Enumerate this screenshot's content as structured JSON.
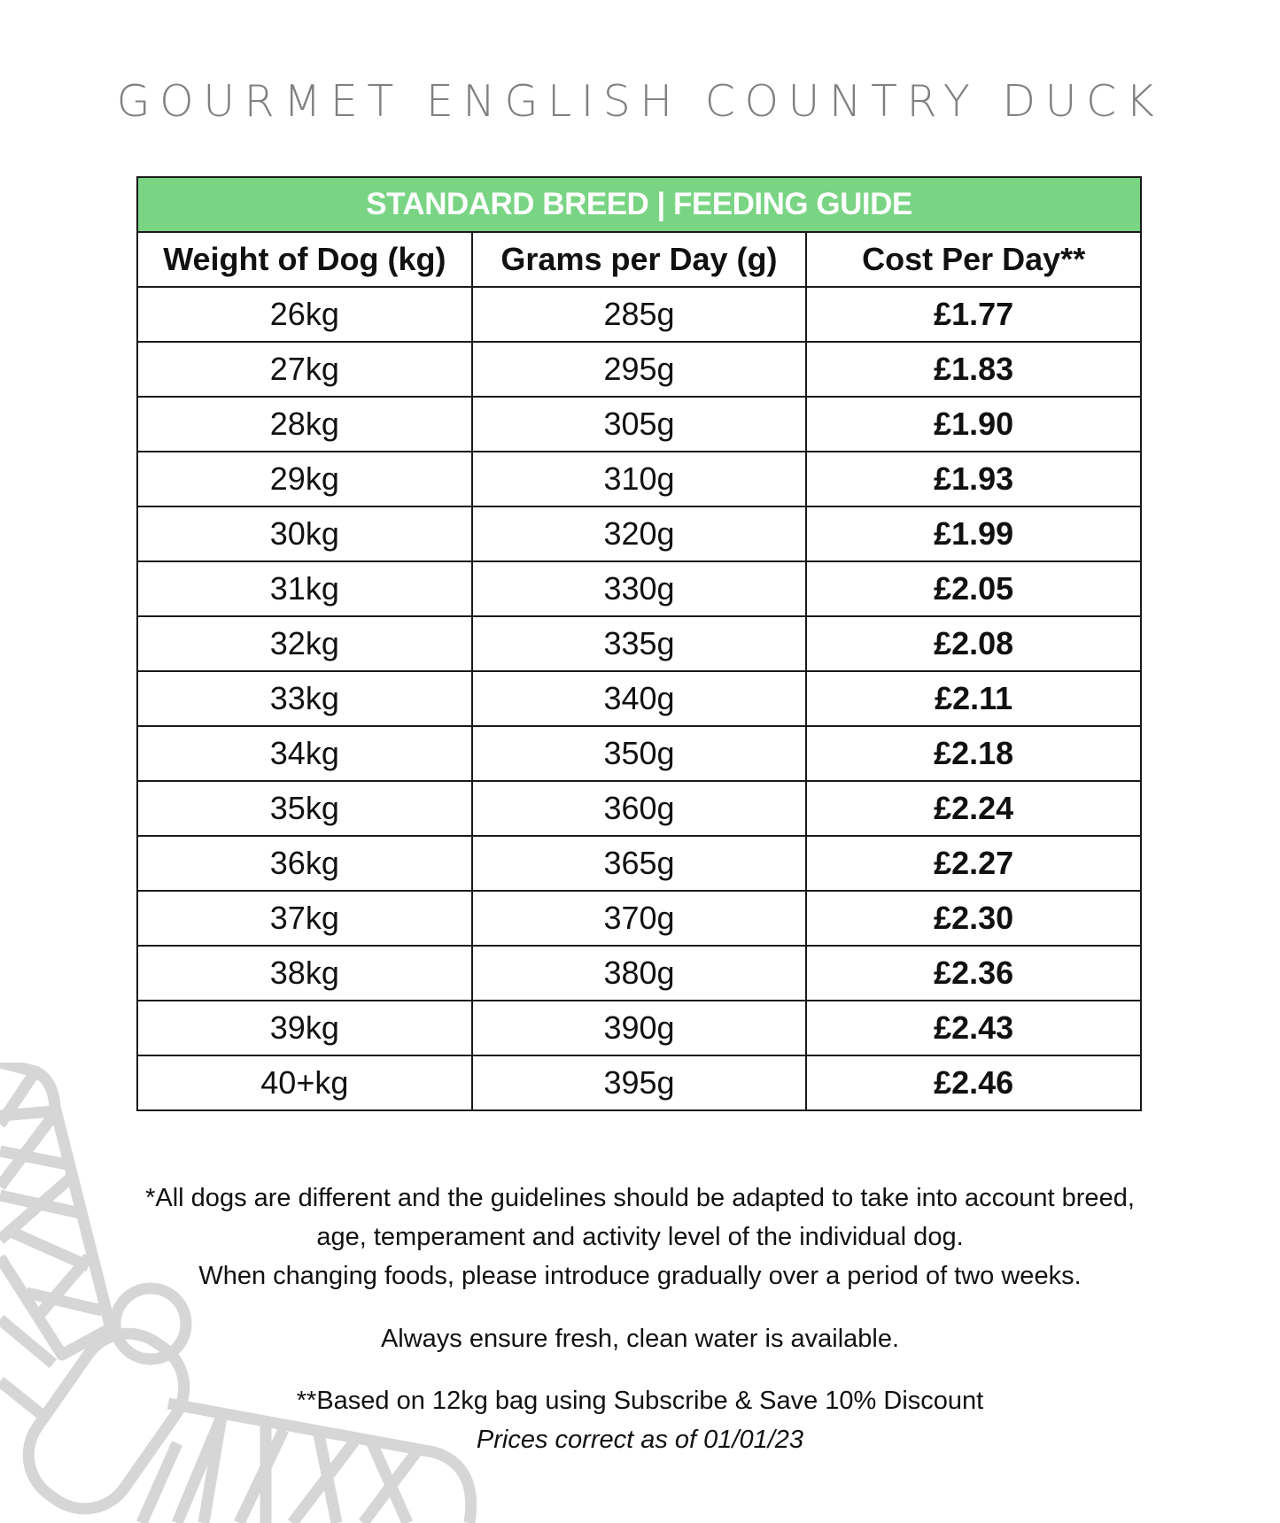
{
  "title": "GOURMET ENGLISH COUNTRY DUCK",
  "table": {
    "banner": "STANDARD BREED | FEEDING GUIDE",
    "banner_color": "#79d484",
    "headers": [
      "Weight of Dog (kg)",
      "Grams per Day (g)",
      "Cost Per Day**"
    ],
    "rows": [
      [
        "26kg",
        "285g",
        "£1.77"
      ],
      [
        "27kg",
        "295g",
        "£1.83"
      ],
      [
        "28kg",
        "305g",
        "£1.90"
      ],
      [
        "29kg",
        "310g",
        "£1.93"
      ],
      [
        "30kg",
        "320g",
        "£1.99"
      ],
      [
        "31kg",
        "330g",
        "£2.05"
      ],
      [
        "32kg",
        "335g",
        "£2.08"
      ],
      [
        "33kg",
        "340g",
        "£2.11"
      ],
      [
        "34kg",
        "350g",
        "£2.18"
      ],
      [
        "35kg",
        "360g",
        "£2.24"
      ],
      [
        "36kg",
        "365g",
        "£2.27"
      ],
      [
        "37kg",
        "370g",
        "£2.30"
      ],
      [
        "38kg",
        "380g",
        "£2.36"
      ],
      [
        "39kg",
        "390g",
        "£2.43"
      ],
      [
        "40+kg",
        "395g",
        "£2.46"
      ]
    ]
  },
  "notes": {
    "line1": "*All dogs are different and the guidelines should be adapted to take into account breed,",
    "line2": "age, temperament and activity level of the individual dog.",
    "line3": "When changing foods, please introduce gradually over a period of two weeks.",
    "water": "Always ensure fresh, clean water is available.",
    "basis": "**Based on 12kg bag using Subscribe & Save 10% Discount",
    "prices": "Prices correct as of 01/01/23"
  },
  "watermark_icon": "dragonfly-icon"
}
